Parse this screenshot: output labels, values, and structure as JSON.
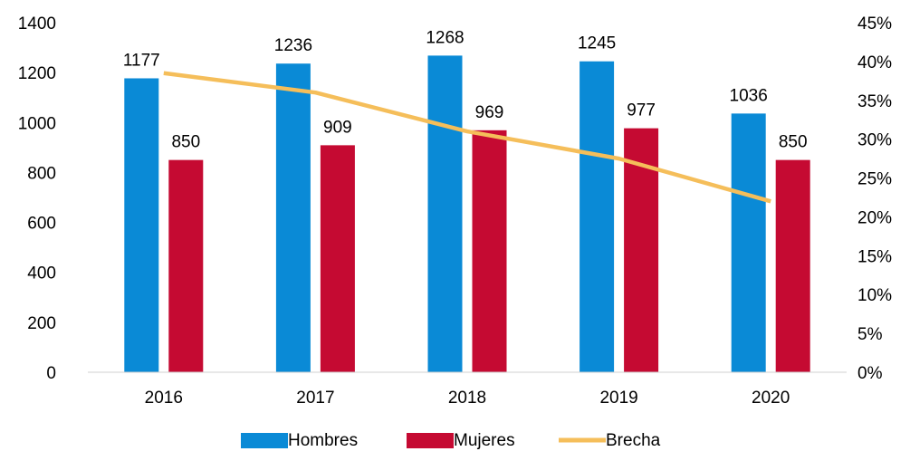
{
  "chart_data": {
    "type": "bar",
    "categories": [
      "2016",
      "2017",
      "2018",
      "2019",
      "2020"
    ],
    "series": [
      {
        "name": "Hombres",
        "type": "bar",
        "axis": "left",
        "color": "#0A8AD6",
        "values": [
          1177,
          1236,
          1268,
          1245,
          1036
        ]
      },
      {
        "name": "Mujeres",
        "type": "bar",
        "axis": "left",
        "color": "#C50A32",
        "values": [
          850,
          909,
          969,
          977,
          850
        ]
      },
      {
        "name": "Brecha",
        "type": "line",
        "axis": "right",
        "color": "#F5BE5A",
        "values": [
          0.385,
          0.36,
          0.31,
          0.275,
          0.22
        ]
      }
    ],
    "y_left": {
      "min": 0,
      "max": 1400,
      "ticks": [
        0,
        200,
        400,
        600,
        800,
        1000,
        1200,
        1400
      ],
      "tick_labels": [
        "0",
        "200",
        "400",
        "600",
        "800",
        "1000",
        "1200",
        "1400"
      ]
    },
    "y_right": {
      "min": 0,
      "max": 0.45,
      "ticks": [
        0,
        0.05,
        0.1,
        0.15,
        0.2,
        0.25,
        0.3,
        0.35,
        0.4,
        0.45
      ],
      "tick_labels": [
        "0%",
        "5%",
        "10%",
        "15%",
        "20%",
        "25%",
        "30%",
        "35%",
        "40%",
        "45%"
      ]
    },
    "title": "",
    "xlabel": "",
    "ylabel": "",
    "grid": false,
    "legend_position": "bottom",
    "data_labels_on": [
      "Hombres",
      "Mujeres"
    ]
  }
}
